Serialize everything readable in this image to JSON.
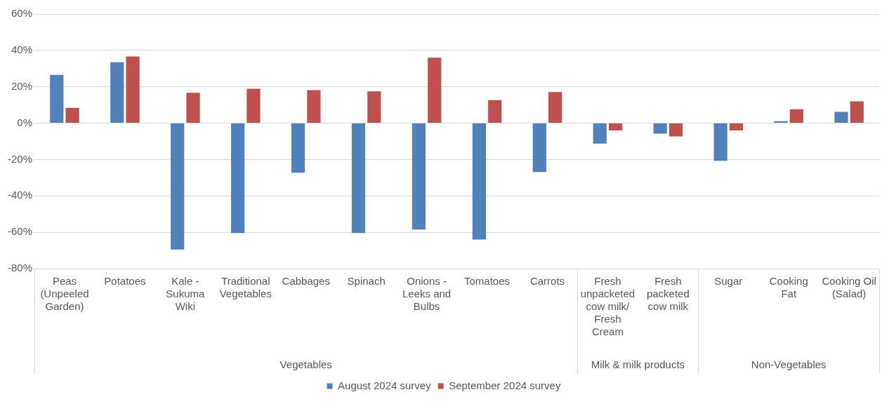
{
  "chart_data": {
    "type": "bar",
    "categories": [
      "Peas (Unpeeled Garden)",
      "Potatoes",
      "Kale - Sukuma Wiki",
      "Traditional Vegetables",
      "Cabbages",
      "Spinach",
      "Onions - Leeks and Bulbs",
      "Tomatoes",
      "Carrots",
      "Fresh unpacketed cow milk/ Fresh Cream",
      "Fresh packeted cow milk",
      "Sugar",
      "Cooking Fat",
      "Cooking Oil (Salad)"
    ],
    "series": [
      {
        "name": "August 2024 survey",
        "color": "#4f81bd",
        "values": [
          26.5,
          33.5,
          -69.5,
          -60.4,
          -27.3,
          -60.4,
          -58.5,
          -64,
          -26.9,
          -11.3,
          -5.8,
          -20.7,
          1.1,
          6.2
        ]
      },
      {
        "name": "September 2024 survey",
        "color": "#c0504d",
        "values": [
          8.4,
          36.7,
          16.7,
          18.9,
          18.2,
          17.5,
          36,
          12.7,
          17.1,
          -4,
          -7.3,
          -4,
          7.6,
          12
        ]
      }
    ],
    "ylim": [
      -80,
      60
    ],
    "yticks": [
      {
        "value": -80,
        "label": "-80%"
      },
      {
        "value": -60,
        "label": "-60%"
      },
      {
        "value": -40,
        "label": "-40%"
      },
      {
        "value": -20,
        "label": "-20%"
      },
      {
        "value": 0,
        "label": "0%"
      },
      {
        "value": 20,
        "label": "20%"
      },
      {
        "value": 40,
        "label": "40%"
      },
      {
        "value": 60,
        "label": "60%"
      }
    ],
    "grid": "y",
    "legend": "bottom",
    "annotations": [
      "Vegetables",
      "Milk & milk products",
      "Non-Vegetables"
    ]
  }
}
